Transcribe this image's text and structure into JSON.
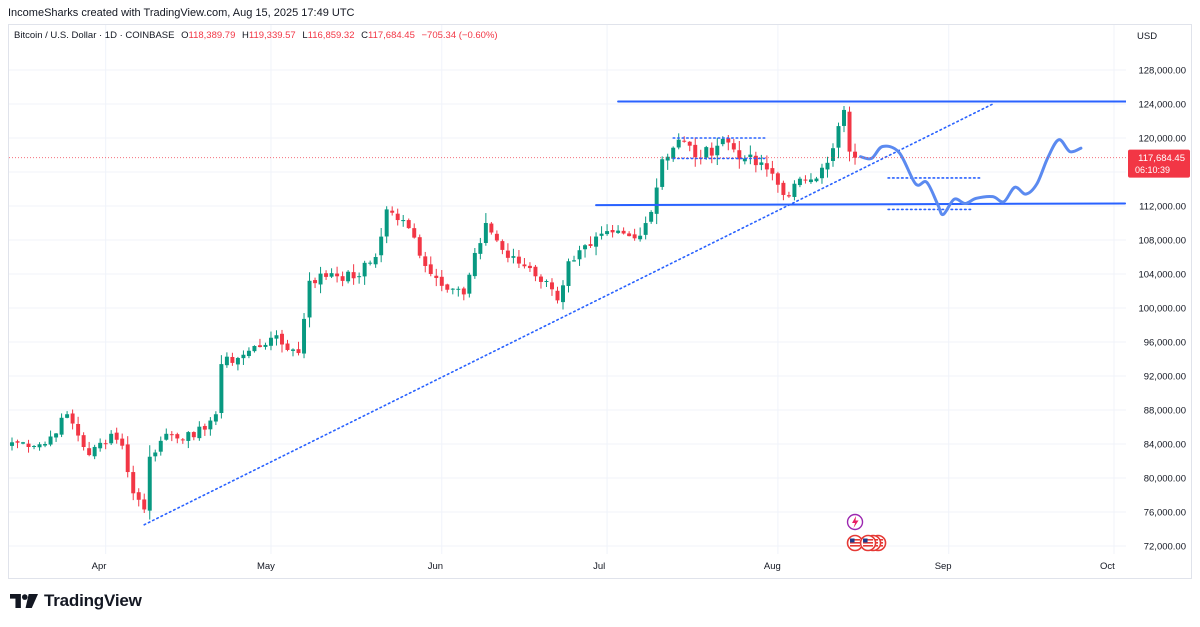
{
  "header": {
    "attribution": "IncomeSharks created with TradingView.com, Aug 15, 2025 17:49 UTC"
  },
  "legend": {
    "symbol": "Bitcoin / U.S. Dollar · 1D · COINBASE",
    "open_label": "O",
    "open": "118,389.79",
    "high_label": "H",
    "high": "119,339.57",
    "low_label": "L",
    "low": "116,859.32",
    "close_label": "C",
    "close": "117,684.45",
    "change": "−705.34 (−0.60%)"
  },
  "price_axis": {
    "currency": "USD"
  },
  "last_price": {
    "value": "117,684.45",
    "countdown": "06:10:39"
  },
  "footer": {
    "brand": "TradingView"
  },
  "colors": {
    "up": "#089981",
    "down": "#f23645",
    "drawing": "#2962ff",
    "projection": "#5b8af0",
    "grid": "#f0f3fa",
    "text": "#131722"
  },
  "chart_data": {
    "type": "candlestick",
    "title": "Bitcoin / U.S. Dollar · 1D · COINBASE",
    "xlabel": "",
    "ylabel": "",
    "ylim": [
      71000,
      130000
    ],
    "y_ticks": [
      "72,000.00",
      "76,000.00",
      "80,000.00",
      "84,000.00",
      "88,000.00",
      "92,000.00",
      "96,000.00",
      "100,000.00",
      "104,000.00",
      "108,000.00",
      "112,000.00",
      "116,000.00",
      "120,000.00",
      "124,000.00",
      "128,000.00"
    ],
    "x_ticks": [
      "Apr",
      "May",
      "Jun",
      "Jul",
      "Aug",
      "Sep",
      "Oct"
    ],
    "grid": true,
    "candles_start": "2025-03-15",
    "close_path": [
      {
        "date": "2025-03-15",
        "close": 84200
      },
      {
        "date": "2025-03-21",
        "close": 84000
      },
      {
        "date": "2025-03-25",
        "close": 87500
      },
      {
        "date": "2025-03-29",
        "close": 82700
      },
      {
        "date": "2025-04-02",
        "close": 85200
      },
      {
        "date": "2025-04-04",
        "close": 83800
      },
      {
        "date": "2025-04-06",
        "close": 78200
      },
      {
        "date": "2025-04-08",
        "close": 76300
      },
      {
        "date": "2025-04-09",
        "close": 82500
      },
      {
        "date": "2025-04-12",
        "close": 85200
      },
      {
        "date": "2025-04-17",
        "close": 84800
      },
      {
        "date": "2025-04-21",
        "close": 87500
      },
      {
        "date": "2025-04-22",
        "close": 93400
      },
      {
        "date": "2025-04-26",
        "close": 94500
      },
      {
        "date": "2025-05-01",
        "close": 96500
      },
      {
        "date": "2025-05-06",
        "close": 94700
      },
      {
        "date": "2025-05-08",
        "close": 103200
      },
      {
        "date": "2025-05-12",
        "close": 104100
      },
      {
        "date": "2025-05-16",
        "close": 103500
      },
      {
        "date": "2025-05-20",
        "close": 106000
      },
      {
        "date": "2025-05-22",
        "close": 111600
      },
      {
        "date": "2025-05-26",
        "close": 109400
      },
      {
        "date": "2025-05-30",
        "close": 104000
      },
      {
        "date": "2025-06-05",
        "close": 101600
      },
      {
        "date": "2025-06-09",
        "close": 110000
      },
      {
        "date": "2025-06-13",
        "close": 105900
      },
      {
        "date": "2025-06-17",
        "close": 104700
      },
      {
        "date": "2025-06-21",
        "close": 102200
      },
      {
        "date": "2025-06-22",
        "close": 100900
      },
      {
        "date": "2025-06-24",
        "close": 105500
      },
      {
        "date": "2025-06-28",
        "close": 107300
      },
      {
        "date": "2025-07-02",
        "close": 108900
      },
      {
        "date": "2025-07-06",
        "close": 108200
      },
      {
        "date": "2025-07-09",
        "close": 111300
      },
      {
        "date": "2025-07-11",
        "close": 117500
      },
      {
        "date": "2025-07-14",
        "close": 119800
      },
      {
        "date": "2025-07-18",
        "close": 117600
      },
      {
        "date": "2025-07-22",
        "close": 119900
      },
      {
        "date": "2025-07-26",
        "close": 117600
      },
      {
        "date": "2025-07-31",
        "close": 115800
      },
      {
        "date": "2025-08-02",
        "close": 113300
      },
      {
        "date": "2025-08-06",
        "close": 115000
      },
      {
        "date": "2025-08-09",
        "close": 116500
      },
      {
        "date": "2025-08-11",
        "close": 118800
      },
      {
        "date": "2025-08-13",
        "close": 123300
      },
      {
        "date": "2025-08-14",
        "close": 118400
      },
      {
        "date": "2025-08-15",
        "close": 117684
      }
    ],
    "last_candle": {
      "date": "2025-08-15",
      "open": 118389.79,
      "high": 119339.57,
      "low": 116859.32,
      "close": 117684.45
    },
    "annotations": {
      "resistance_line": {
        "from": {
          "date": "2025-07-03",
          "price": 124300
        },
        "to": {
          "date": "2025-10-05",
          "price": 124300
        }
      },
      "support_line": {
        "from": {
          "date": "2025-06-29",
          "price": 112100
        },
        "to": {
          "date": "2025-10-03",
          "price": 112300
        }
      },
      "ascending_trendline": {
        "from": {
          "date": "2025-04-08",
          "price": 74500
        },
        "to": {
          "date": "2025-09-09",
          "price": 124000
        }
      },
      "range_top_dots": {
        "from": {
          "date": "2025-07-13",
          "price": 120000
        },
        "to": {
          "date": "2025-07-30",
          "price": 120000
        }
      },
      "range_mid_dots": {
        "from": {
          "date": "2025-07-13",
          "price": 117600
        },
        "to": {
          "date": "2025-07-30",
          "price": 117600
        }
      },
      "projection_top_dots": {
        "from": {
          "date": "2025-08-21",
          "price": 115300
        },
        "to": {
          "date": "2025-09-07",
          "price": 115300
        }
      },
      "projection_bottom_dots": {
        "from": {
          "date": "2025-08-21",
          "price": 111600
        },
        "to": {
          "date": "2025-09-05",
          "price": 111600
        }
      },
      "projected_path": [
        {
          "date": "2025-08-16",
          "price": 117800
        },
        {
          "date": "2025-08-18",
          "price": 117600
        },
        {
          "date": "2025-08-20",
          "price": 119000
        },
        {
          "date": "2025-08-23",
          "price": 118300
        },
        {
          "date": "2025-08-26",
          "price": 114600
        },
        {
          "date": "2025-08-28",
          "price": 114800
        },
        {
          "date": "2025-08-30",
          "price": 112200
        },
        {
          "date": "2025-08-31",
          "price": 111000
        },
        {
          "date": "2025-09-02",
          "price": 112800
        },
        {
          "date": "2025-09-04",
          "price": 112300
        },
        {
          "date": "2025-09-06",
          "price": 112900
        },
        {
          "date": "2025-09-09",
          "price": 113100
        },
        {
          "date": "2025-09-11",
          "price": 112500
        },
        {
          "date": "2025-09-13",
          "price": 114200
        },
        {
          "date": "2025-09-15",
          "price": 113400
        },
        {
          "date": "2025-09-17",
          "price": 114600
        },
        {
          "date": "2025-09-19",
          "price": 117700
        },
        {
          "date": "2025-09-21",
          "price": 119800
        },
        {
          "date": "2025-09-23",
          "price": 118400
        },
        {
          "date": "2025-09-25",
          "price": 118800
        }
      ]
    },
    "event_markers": [
      {
        "date": "2025-08-15",
        "kind": "lightning-event"
      },
      {
        "date": "2025-08-15",
        "kind": "us-flag"
      },
      {
        "date": "2025-08-17",
        "kind": "us-flag-group"
      }
    ]
  }
}
